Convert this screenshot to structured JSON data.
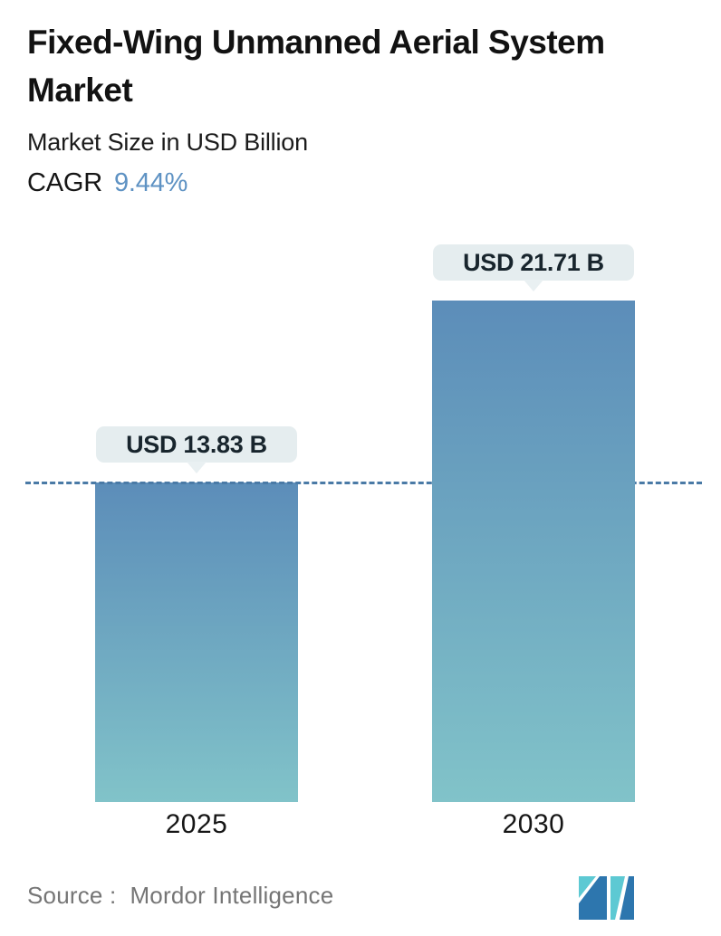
{
  "header": {
    "title": "Fixed-Wing Unmanned Aerial System Market",
    "subtitle": "Market Size in USD Billion",
    "cagr_label": "CAGR",
    "cagr_value": "9.44%"
  },
  "chart_data": {
    "type": "bar",
    "title": "Fixed-Wing Unmanned Aerial System Market",
    "subtitle": "Market Size in USD Billion",
    "cagr": "9.44%",
    "unit": "USD Billion",
    "categories": [
      "2025",
      "2030"
    ],
    "values": [
      13.83,
      21.71
    ],
    "bar_labels": [
      "USD 13.83 B",
      "USD 21.71 B"
    ],
    "xlabel": "",
    "ylabel": "Market Size in USD Billion",
    "ylim": [
      0,
      21.71
    ],
    "grid": false,
    "legend": false,
    "baseline": {
      "value": 13.83,
      "style": "dashed",
      "note": "dashed reference line at 2025 market size, hidden behind 2030 bar"
    }
  },
  "footer": {
    "source_label": "Source :",
    "source_value": "Mordor Intelligence",
    "logo_icon": "mordor-intelligence-logo"
  },
  "colors": {
    "accent_blue": "#5e92c3",
    "bar_gradient_top": "#5c8db9",
    "bar_gradient_bottom": "#81c3c9",
    "baseline_dash": "#4a7aa6",
    "pill_bg": "#e5edef",
    "pill_pointer": "#e9f0f2",
    "pill_text": "#18252d",
    "title_text": "#121212",
    "axis_text": "#161616",
    "source_text": "#757575",
    "logo_teal": "#5dc9d3",
    "logo_blue": "#2d76ae"
  }
}
